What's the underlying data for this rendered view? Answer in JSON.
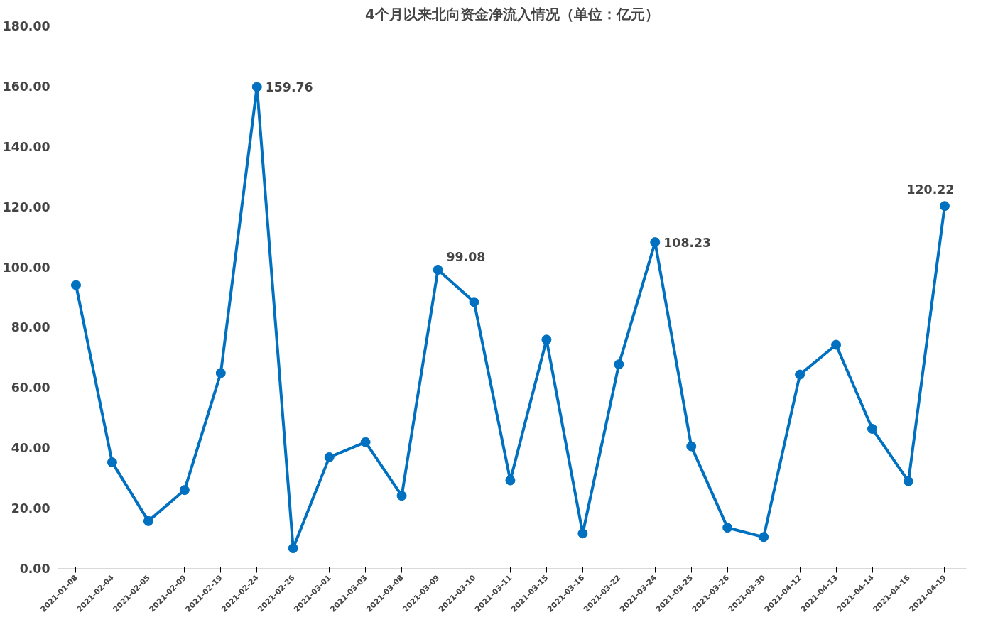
{
  "chart_data": {
    "type": "line",
    "title": "4个月以来北向资金净流入情况（单位：亿元）",
    "categories": [
      "2021-01-08",
      "2021-02-04",
      "2021-02-05",
      "2021-02-09",
      "2021-02-19",
      "2021-02-24",
      "2021-02-26",
      "2021-03-01",
      "2021-03-03",
      "2021-03-08",
      "2021-03-09",
      "2021-03-10",
      "2021-03-11",
      "2021-03-15",
      "2021-03-16",
      "2021-03-22",
      "2021-03-24",
      "2021-03-25",
      "2021-03-26",
      "2021-03-30",
      "2021-04-12",
      "2021-04-13",
      "2021-04-14",
      "2021-04-16",
      "2021-04-19"
    ],
    "series": [
      {
        "color": "#0070c0",
        "values": [
          94.0,
          35.2,
          15.7,
          26.0,
          64.8,
          159.76,
          6.7,
          36.9,
          41.9,
          24.1,
          99.08,
          88.4,
          29.2,
          75.9,
          11.6,
          67.7,
          108.23,
          40.5,
          13.5,
          10.4,
          64.3,
          74.2,
          46.3,
          28.9,
          120.22
        ],
        "value_labels": [
          null,
          null,
          null,
          null,
          null,
          "159.76",
          null,
          null,
          null,
          null,
          "99.08",
          null,
          null,
          null,
          null,
          null,
          "108.23",
          null,
          null,
          null,
          null,
          null,
          null,
          null,
          "120.22"
        ]
      }
    ],
    "ylim": [
      0,
      180
    ],
    "yticks": [
      {
        "value": 0,
        "label": "0.00"
      },
      {
        "value": 20,
        "label": "20.00"
      },
      {
        "value": 40,
        "label": "40.00"
      },
      {
        "value": 60,
        "label": "60.00"
      },
      {
        "value": 80,
        "label": "80.00"
      },
      {
        "value": 100,
        "label": "100.00"
      },
      {
        "value": 120,
        "label": "120.00"
      },
      {
        "value": 140,
        "label": "140.00"
      },
      {
        "value": 160,
        "label": "160.00"
      },
      {
        "value": 180,
        "label": "180.00"
      }
    ],
    "grid": false,
    "marker": "circle",
    "line_style": "solid"
  }
}
